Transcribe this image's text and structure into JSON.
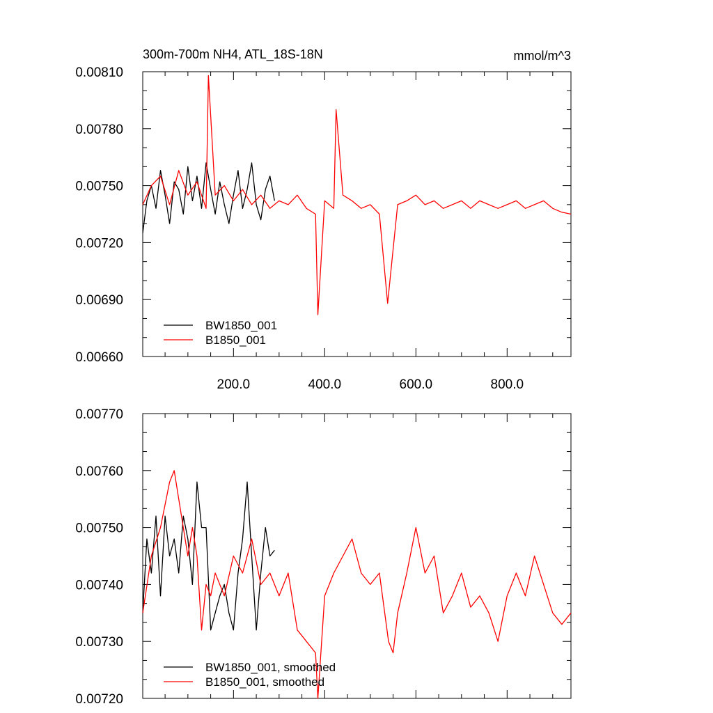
{
  "figure": {
    "title": "300m-700m NH4, ATL_18S-18N",
    "units": "mmol/m^3"
  },
  "chart_data": [
    {
      "type": "line",
      "title": "300m-700m NH4, ATL_18S-18N",
      "units_label": "mmol/m^3",
      "xlim": [
        1,
        940
      ],
      "ylim": [
        0.0066,
        0.0081
      ],
      "x_ticks": [
        200,
        400,
        600,
        800
      ],
      "x_tick_labels": [
        "200.0",
        "400.0",
        "600.0",
        "800.0"
      ],
      "y_ticks": [
        0.0066,
        0.0069,
        0.0072,
        0.0075,
        0.0078,
        0.0081
      ],
      "y_tick_labels": [
        "0.00660",
        "0.00690",
        "0.00720",
        "0.00750",
        "0.00780",
        "0.00810"
      ],
      "legend_position": "bottom-left",
      "grid": false,
      "series": [
        {
          "name": "BW1850_001",
          "color": "#000000",
          "x": [
            1,
            10,
            20,
            30,
            40,
            50,
            60,
            70,
            80,
            90,
            100,
            110,
            120,
            130,
            140,
            150,
            160,
            170,
            180,
            190,
            200,
            210,
            220,
            230,
            240,
            250,
            260,
            270,
            280,
            290
          ],
          "y": [
            0.00725,
            0.00742,
            0.0075,
            0.00738,
            0.00758,
            0.00745,
            0.0073,
            0.00752,
            0.00748,
            0.00735,
            0.0076,
            0.00742,
            0.00755,
            0.00738,
            0.00762,
            0.00748,
            0.00735,
            0.00752,
            0.0074,
            0.0073,
            0.00745,
            0.00758,
            0.00738,
            0.00748,
            0.00762,
            0.0074,
            0.00732,
            0.00748,
            0.00755,
            0.00742
          ]
        },
        {
          "name": "B1850_001",
          "color": "#ff0000",
          "x": [
            1,
            20,
            40,
            60,
            80,
            100,
            120,
            140,
            145,
            160,
            180,
            200,
            220,
            240,
            260,
            280,
            300,
            320,
            340,
            360,
            380,
            385,
            400,
            420,
            425,
            440,
            460,
            480,
            500,
            520,
            538,
            560,
            580,
            600,
            620,
            640,
            660,
            680,
            700,
            720,
            740,
            760,
            780,
            800,
            820,
            840,
            860,
            880,
            900,
            920,
            940
          ],
          "y": [
            0.0074,
            0.0075,
            0.00755,
            0.0074,
            0.00758,
            0.00745,
            0.00752,
            0.00738,
            0.00808,
            0.00745,
            0.0075,
            0.00742,
            0.00748,
            0.0074,
            0.00745,
            0.00738,
            0.00742,
            0.0074,
            0.00745,
            0.00738,
            0.00735,
            0.00682,
            0.00742,
            0.00738,
            0.0079,
            0.00745,
            0.00742,
            0.00738,
            0.0074,
            0.00735,
            0.00688,
            0.0074,
            0.00742,
            0.00745,
            0.0074,
            0.00742,
            0.00738,
            0.0074,
            0.00742,
            0.00738,
            0.00742,
            0.0074,
            0.00738,
            0.0074,
            0.00742,
            0.00738,
            0.0074,
            0.00742,
            0.00738,
            0.00736,
            0.00735
          ]
        }
      ]
    },
    {
      "type": "line",
      "title": "",
      "xlim": [
        1,
        940
      ],
      "ylim": [
        0.0072,
        0.0077
      ],
      "y_ticks": [
        0.0072,
        0.0073,
        0.0074,
        0.0075,
        0.0076,
        0.0077
      ],
      "y_tick_labels": [
        "0.00720",
        "0.00730",
        "0.00740",
        "0.00750",
        "0.00760",
        "0.00770"
      ],
      "legend_position": "bottom-left",
      "grid": false,
      "series": [
        {
          "name": "BW1850_001, smoothed",
          "color": "#000000",
          "x": [
            1,
            10,
            20,
            30,
            40,
            50,
            60,
            70,
            80,
            90,
            100,
            110,
            120,
            130,
            140,
            150,
            160,
            170,
            180,
            190,
            200,
            210,
            220,
            230,
            240,
            250,
            260,
            270,
            280,
            290
          ],
          "y": [
            0.00735,
            0.00748,
            0.00742,
            0.00752,
            0.00738,
            0.00752,
            0.00745,
            0.00748,
            0.00742,
            0.00752,
            0.00748,
            0.0074,
            0.00758,
            0.0075,
            0.0075,
            0.00732,
            0.00735,
            0.00738,
            0.0074,
            0.00735,
            0.00732,
            0.00742,
            0.00748,
            0.00758,
            0.00745,
            0.00732,
            0.00742,
            0.0075,
            0.00745,
            0.00746
          ]
        },
        {
          "name": "B1850_001, smoothed",
          "color": "#ff0000",
          "x": [
            1,
            20,
            40,
            60,
            70,
            80,
            100,
            110,
            120,
            130,
            140,
            150,
            160,
            180,
            200,
            220,
            240,
            260,
            280,
            300,
            320,
            340,
            360,
            380,
            385,
            400,
            420,
            440,
            460,
            480,
            500,
            520,
            540,
            550,
            560,
            580,
            600,
            620,
            640,
            660,
            680,
            700,
            720,
            740,
            760,
            780,
            800,
            820,
            840,
            860,
            880,
            900,
            920,
            940
          ],
          "y": [
            0.00735,
            0.00745,
            0.0075,
            0.00758,
            0.0076,
            0.00755,
            0.00745,
            0.0075,
            0.00745,
            0.00732,
            0.0074,
            0.00738,
            0.00742,
            0.00738,
            0.00745,
            0.00742,
            0.00748,
            0.0074,
            0.00742,
            0.00738,
            0.00742,
            0.00732,
            0.0073,
            0.00728,
            0.0072,
            0.00738,
            0.00742,
            0.00745,
            0.00748,
            0.00742,
            0.0074,
            0.00742,
            0.0073,
            0.00728,
            0.00735,
            0.00742,
            0.0075,
            0.00742,
            0.00745,
            0.00735,
            0.00738,
            0.00742,
            0.00736,
            0.00738,
            0.00735,
            0.0073,
            0.00738,
            0.00742,
            0.00738,
            0.00745,
            0.0074,
            0.00735,
            0.00733,
            0.00735
          ]
        }
      ]
    }
  ]
}
